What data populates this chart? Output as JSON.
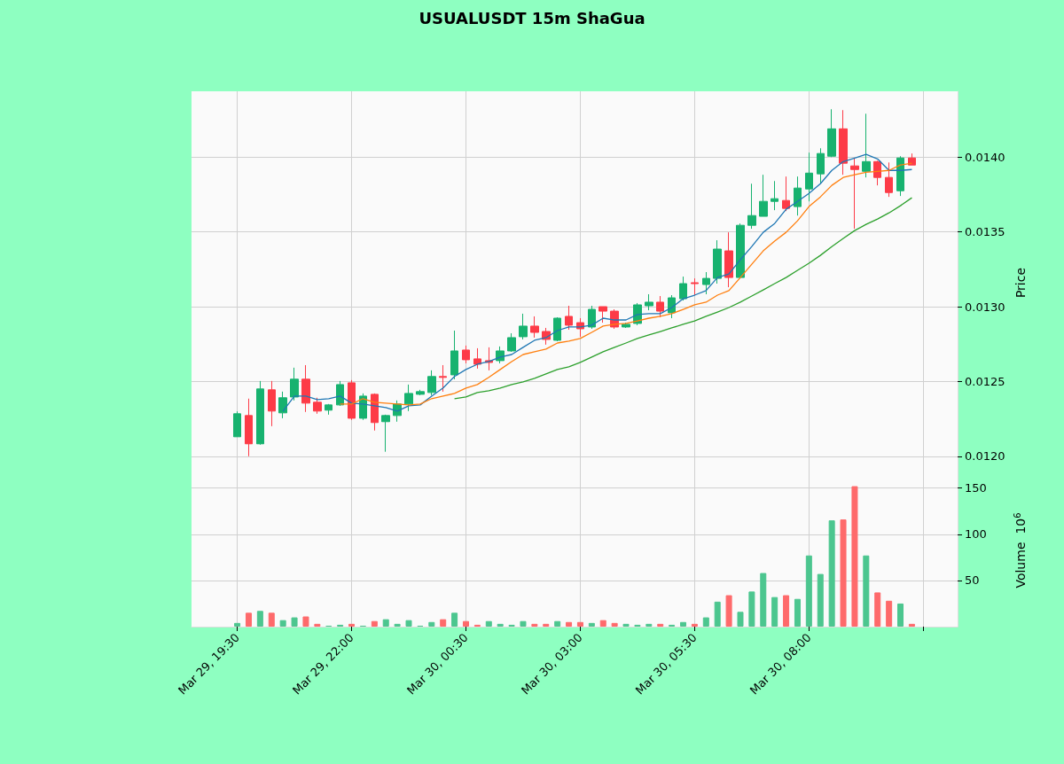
{
  "chart_data": [
    {
      "type": "candlestick",
      "title": "USUALUSDT 15m ShaGua",
      "ylabel": "Price",
      "grid": true,
      "tick_labels": "y",
      "xlim": [
        "--03-29T18:30",
        "--03-30T11:15"
      ],
      "xticks": [
        {
          "value": "--03-29T19:30",
          "label": null
        },
        {
          "value": "--03-29T22:00",
          "label": null
        },
        {
          "value": "--03-30T00:30",
          "label": null
        },
        {
          "value": "--03-30T03:00",
          "label": null
        },
        {
          "value": "--03-30T05:30",
          "label": null
        },
        {
          "value": "--03-30T08:00",
          "label": null
        },
        {
          "value": "--03-30T10:30",
          "label": null
        }
      ],
      "ylim": [
        0.01188,
        0.01444
      ],
      "yticks": [
        {
          "value": 0.012,
          "label": "0.0120"
        },
        0.0125,
        {
          "value": 0.013,
          "label": "0.0130"
        },
        0.0135,
        {
          "value": 0.014,
          "label": "0.0140"
        }
      ],
      "x": [
        "--03-29T19:30",
        "--03-29T19:45",
        "--03-29T20:00",
        "--03-29T20:15",
        "--03-29T20:30",
        "--03-29T20:45",
        "--03-29T21:00",
        "--03-29T21:15",
        "--03-29T21:30",
        "--03-29T21:45",
        "--03-29T22:00",
        "--03-29T22:15",
        "--03-29T22:30",
        "--03-29T22:45",
        "--03-29T23:00",
        "--03-29T23:15",
        "--03-29T23:30",
        "--03-29T23:45",
        "--03-30T00:00",
        "--03-30T00:15",
        "--03-30T00:30",
        "--03-30T00:45",
        "--03-30T01:00",
        "--03-30T01:15",
        "--03-30T01:30",
        "--03-30T01:45",
        "--03-30T02:00",
        "--03-30T02:15",
        "--03-30T02:30",
        "--03-30T02:45",
        "--03-30T03:00",
        "--03-30T03:15",
        "--03-30T03:30",
        "--03-30T03:45",
        "--03-30T04:00",
        "--03-30T04:15",
        "--03-30T04:30",
        "--03-30T04:45",
        "--03-30T05:00",
        "--03-30T05:15",
        "--03-30T05:30",
        "--03-30T05:45",
        "--03-30T06:00",
        "--03-30T06:15",
        "--03-30T06:30",
        "--03-30T06:45",
        "--03-30T07:00",
        "--03-30T07:15",
        "--03-30T07:30",
        "--03-30T07:45",
        "--03-30T08:00",
        "--03-30T08:15",
        "--03-30T08:30",
        "--03-30T08:45",
        "--03-30T09:00",
        "--03-30T09:15",
        "--03-30T09:30",
        "--03-30T09:45",
        "--03-30T10:00",
        "--03-30T10:15"
      ],
      "ohlc": [
        [
          0.01213,
          0.0123,
          0.01213,
          0.012284
        ],
        [
          0.012272,
          0.012385,
          0.012,
          0.012083
        ],
        [
          0.012083,
          0.012503,
          0.012077,
          0.01245
        ],
        [
          0.012444,
          0.012503,
          0.012201,
          0.012302
        ],
        [
          0.01229,
          0.012432,
          0.012254,
          0.012391
        ],
        [
          0.012396,
          0.012592,
          0.012373,
          0.012515
        ],
        [
          0.012515,
          0.012609,
          0.012296,
          0.012355
        ],
        [
          0.012361,
          0.012391,
          0.012284,
          0.012302
        ],
        [
          0.012308,
          0.012349,
          0.012278,
          0.012343
        ],
        [
          0.012343,
          0.012503,
          0.012337,
          0.012479
        ],
        [
          0.012491,
          0.012509,
          0.012243,
          0.012254
        ],
        [
          0.012254,
          0.01242,
          0.012243,
          0.012402
        ],
        [
          0.012414,
          0.01242,
          0.012172,
          0.012225
        ],
        [
          0.012231,
          0.012278,
          0.01203,
          0.012272
        ],
        [
          0.012272,
          0.012373,
          0.012231,
          0.012349
        ],
        [
          0.012349,
          0.012479,
          0.012302,
          0.01242
        ],
        [
          0.012414,
          0.012444,
          0.012408,
          0.012432
        ],
        [
          0.012426,
          0.012574,
          0.012408,
          0.012533
        ],
        [
          0.012533,
          0.012609,
          0.012432,
          0.012527
        ],
        [
          0.012544,
          0.01284,
          0.012515,
          0.012704
        ],
        [
          0.01271,
          0.01274,
          0.012621,
          0.012645
        ],
        [
          0.012651,
          0.012722,
          0.012586,
          0.012615
        ],
        [
          0.012639,
          0.012728,
          0.012574,
          0.012627
        ],
        [
          0.012639,
          0.012734,
          0.012621,
          0.012704
        ],
        [
          0.012704,
          0.012822,
          0.012698,
          0.012793
        ],
        [
          0.012799,
          0.012953,
          0.012781,
          0.01287
        ],
        [
          0.01287,
          0.012935,
          0.012793,
          0.012828
        ],
        [
          0.012834,
          0.012858,
          0.012746,
          0.012781
        ],
        [
          0.012775,
          0.012929,
          0.012769,
          0.012923
        ],
        [
          0.012935,
          0.013006,
          0.012846,
          0.012876
        ],
        [
          0.012893,
          0.012923,
          0.012799,
          0.012852
        ],
        [
          0.012864,
          0.013006,
          0.012852,
          0.012982
        ],
        [
          0.013,
          0.013,
          0.012893,
          0.01297
        ],
        [
          0.01297,
          0.012982,
          0.012852,
          0.012864
        ],
        [
          0.012864,
          0.012893,
          0.012858,
          0.012882
        ],
        [
          0.012888,
          0.013024,
          0.012876,
          0.013012
        ],
        [
          0.013006,
          0.013083,
          0.012976,
          0.01303
        ],
        [
          0.01303,
          0.013071,
          0.012929,
          0.01297
        ],
        [
          0.012959,
          0.013077,
          0.012923,
          0.013059
        ],
        [
          0.013053,
          0.013201,
          0.013041,
          0.013154
        ],
        [
          0.01316,
          0.013189,
          0.013077,
          0.013154
        ],
        [
          0.013148,
          0.013231,
          0.013083,
          0.013189
        ],
        [
          0.013189,
          0.013444,
          0.013154,
          0.013385
        ],
        [
          0.013373,
          0.013497,
          0.01313,
          0.013195
        ],
        [
          0.013195,
          0.013556,
          0.013189,
          0.013544
        ],
        [
          0.013544,
          0.013822,
          0.013521,
          0.013609
        ],
        [
          0.013604,
          0.013882,
          0.013604,
          0.013704
        ],
        [
          0.013704,
          0.01384,
          0.013645,
          0.013722
        ],
        [
          0.01371,
          0.01387,
          0.013639,
          0.013657
        ],
        [
          0.013669,
          0.01387,
          0.013609,
          0.013793
        ],
        [
          0.013787,
          0.01403,
          0.013704,
          0.013893
        ],
        [
          0.013888,
          0.014059,
          0.013822,
          0.014024
        ],
        [
          0.014006,
          0.01432,
          0.014,
          0.014189
        ],
        [
          0.014189,
          0.014314,
          0.013882,
          0.013959
        ],
        [
          0.013941,
          0.013994,
          0.013521,
          0.013917
        ],
        [
          0.013905,
          0.01429,
          0.013864,
          0.01397
        ],
        [
          0.01397,
          0.013976,
          0.013811,
          0.013864
        ],
        [
          0.013864,
          0.013964,
          0.013734,
          0.013763
        ],
        [
          0.013775,
          0.014006,
          0.01374,
          0.013994
        ],
        [
          0.013994,
          0.014024,
          0.013947,
          0.013947
        ]
      ],
      "colors": [
        "#17b26f",
        "#fd3b47",
        "#17b26f",
        "#fd3b47",
        "#17b26f",
        "#17b26f",
        "#fd3b47",
        "#fd3b47",
        "#17b26f",
        "#17b26f",
        "#fd3b47",
        "#17b26f",
        "#fd3b47",
        "#17b26f",
        "#17b26f",
        "#17b26f",
        "#17b26f",
        "#17b26f",
        "#fd3b47",
        "#17b26f",
        "#fd3b47",
        "#fd3b47",
        "#fd3b47",
        "#17b26f",
        "#17b26f",
        "#17b26f",
        "#fd3b47",
        "#fd3b47",
        "#17b26f",
        "#fd3b47",
        "#fd3b47",
        "#17b26f",
        "#fd3b47",
        "#fd3b47",
        "#17b26f",
        "#17b26f",
        "#17b26f",
        "#fd3b47",
        "#17b26f",
        "#17b26f",
        "#fd3b47",
        "#17b26f",
        "#17b26f",
        "#fd3b47",
        "#17b26f",
        "#17b26f",
        "#17b26f",
        "#17b26f",
        "#fd3b47",
        "#17b26f",
        "#17b26f",
        "#17b26f",
        "#17b26f",
        "#fd3b47",
        "#fd3b47",
        "#17b26f",
        "#fd3b47",
        "#fd3b47",
        "#17b26f",
        "#fd3b47"
      ],
      "series": [
        {
          "type": "line",
          "color": "#1f77b4",
          "values": [
            null,
            null,
            null,
            null,
            0.012302,
            0.012402,
            0.012402,
            0.012379,
            0.012385,
            0.012402,
            0.012355,
            0.012349,
            0.012337,
            0.012325,
            0.012302,
            0.012337,
            0.012343,
            0.012402,
            0.012456,
            0.012533,
            0.01258,
            0.012615,
            0.012633,
            0.012663,
            0.01268,
            0.012728,
            0.012775,
            0.012793,
            0.01284,
            0.012864,
            0.012864,
            0.012876,
            0.012923,
            0.012911,
            0.012911,
            0.012947,
            0.012953,
            0.012953,
            0.012994,
            0.013053,
            0.013077,
            0.013107,
            0.013195,
            0.013219,
            0.013314,
            0.013402,
            0.013497,
            0.013556,
            0.013651,
            0.013704,
            0.013757,
            0.013822,
            0.013911,
            0.01397,
            0.013994,
            0.014018,
            0.013988,
            0.013911,
            0.013911,
            0.013917
          ]
        },
        {
          "type": "line",
          "color": "#ff7f0e",
          "values": [
            null,
            null,
            null,
            null,
            null,
            null,
            null,
            null,
            null,
            0.012349,
            0.012349,
            0.012385,
            0.012361,
            0.012355,
            0.012349,
            0.012343,
            0.012349,
            0.012385,
            0.012402,
            0.01242,
            0.012456,
            0.012479,
            0.012527,
            0.01258,
            0.012633,
            0.01268,
            0.012698,
            0.012716,
            0.012757,
            0.012769,
            0.012787,
            0.012828,
            0.01287,
            0.012882,
            0.012888,
            0.012905,
            0.012923,
            0.012935,
            0.012953,
            0.012982,
            0.013012,
            0.01303,
            0.013077,
            0.013107,
            0.013195,
            0.013284,
            0.013373,
            0.013438,
            0.013497,
            0.013574,
            0.013669,
            0.013734,
            0.013811,
            0.013864,
            0.013882,
            0.013899,
            0.013905,
            0.013911,
            0.013947,
            0.013959
          ]
        },
        {
          "type": "line",
          "color": "#2ca02c",
          "values": [
            null,
            null,
            null,
            null,
            null,
            null,
            null,
            null,
            null,
            null,
            null,
            null,
            null,
            null,
            null,
            null,
            null,
            null,
            null,
            0.012385,
            0.012396,
            0.012426,
            0.012438,
            0.012456,
            0.012479,
            0.012497,
            0.012521,
            0.01255,
            0.01258,
            0.012598,
            0.012627,
            0.012663,
            0.012698,
            0.012728,
            0.012757,
            0.012787,
            0.012811,
            0.012834,
            0.012858,
            0.012882,
            0.012905,
            0.012935,
            0.012964,
            0.012994,
            0.01303,
            0.013071,
            0.013112,
            0.013154,
            0.013195,
            0.013243,
            0.01329,
            0.013343,
            0.013402,
            0.013456,
            0.013509,
            0.01355,
            0.013586,
            0.013627,
            0.013675,
            0.013728
          ]
        }
      ]
    },
    {
      "type": "bar",
      "ylabel": "Volume  10$^{6}$",
      "grid": true,
      "xlim": [
        "--03-29T18:30",
        "--03-30T11:15"
      ],
      "xticks": [
        {
          "value": "--03-29T19:30",
          "label": "Mar 29, 19:30"
        },
        {
          "value": "--03-29T22:00",
          "label": "Mar 29, 22:00"
        },
        {
          "value": "--03-30T00:30",
          "label": "Mar 30, 00:30"
        },
        {
          "value": "--03-30T03:00",
          "label": "Mar 30, 03:00"
        },
        {
          "value": "--03-30T05:30",
          "label": "Mar 30, 05:30"
        },
        {
          "value": "--03-30T08:00",
          "label": "Mar 30, 08:00"
        },
        {
          "value": "--03-30T10:30",
          "label": null
        }
      ],
      "ylim": [
        0,
        165
      ],
      "yticks": [
        50,
        100,
        150
      ],
      "x": [
        "--03-29T19:30",
        "--03-29T19:45",
        "--03-29T20:00",
        "--03-29T20:15",
        "--03-29T20:30",
        "--03-29T20:45",
        "--03-29T21:00",
        "--03-29T21:15",
        "--03-29T21:30",
        "--03-29T21:45",
        "--03-29T22:00",
        "--03-29T22:15",
        "--03-29T22:30",
        "--03-29T22:45",
        "--03-29T23:00",
        "--03-29T23:15",
        "--03-29T23:30",
        "--03-29T23:45",
        "--03-30T00:00",
        "--03-30T00:15",
        "--03-30T00:30",
        "--03-30T00:45",
        "--03-30T01:00",
        "--03-30T01:15",
        "--03-30T01:30",
        "--03-30T01:45",
        "--03-30T02:00",
        "--03-30T02:15",
        "--03-30T02:30",
        "--03-30T02:45",
        "--03-30T03:00",
        "--03-30T03:15",
        "--03-30T03:30",
        "--03-30T03:45",
        "--03-30T04:00",
        "--03-30T04:15",
        "--03-30T04:30",
        "--03-30T04:45",
        "--03-30T05:00",
        "--03-30T05:15",
        "--03-30T05:30",
        "--03-30T05:45",
        "--03-30T06:00",
        "--03-30T06:15",
        "--03-30T06:30",
        "--03-30T06:45",
        "--03-30T07:00",
        "--03-30T07:15",
        "--03-30T07:30",
        "--03-30T07:45",
        "--03-30T08:00",
        "--03-30T08:15",
        "--03-30T08:30",
        "--03-30T08:45",
        "--03-30T09:00",
        "--03-30T09:15",
        "--03-30T09:30",
        "--03-30T09:45",
        "--03-30T10:00",
        "--03-30T10:15"
      ],
      "values": [
        4,
        15,
        17,
        15,
        7,
        10,
        11,
        3,
        1,
        2,
        3,
        1,
        6,
        8,
        3,
        7,
        1,
        5,
        8,
        15,
        6,
        2,
        6,
        3,
        2,
        6,
        3,
        3,
        6,
        5,
        5,
        4,
        7,
        4,
        3,
        2,
        3,
        3,
        2,
        5,
        3,
        10,
        27,
        34,
        16,
        38,
        58,
        32,
        34,
        30,
        77,
        57,
        115,
        116,
        152,
        77,
        37,
        28,
        25,
        3
      ],
      "colors": [
        "#4cc68f",
        "#fe6a6b",
        "#4cc68f",
        "#fe6a6b",
        "#4cc68f",
        "#4cc68f",
        "#fe6a6b",
        "#fe6a6b",
        "#4cc68f",
        "#4cc68f",
        "#fe6a6b",
        "#4cc68f",
        "#fe6a6b",
        "#4cc68f",
        "#4cc68f",
        "#4cc68f",
        "#4cc68f",
        "#4cc68f",
        "#fe6a6b",
        "#4cc68f",
        "#fe6a6b",
        "#fe6a6b",
        "#4cc68f",
        "#4cc68f",
        "#4cc68f",
        "#4cc68f",
        "#fe6a6b",
        "#fe6a6b",
        "#4cc68f",
        "#fe6a6b",
        "#fe6a6b",
        "#4cc68f",
        "#fe6a6b",
        "#fe6a6b",
        "#4cc68f",
        "#4cc68f",
        "#4cc68f",
        "#fe6a6b",
        "#4cc68f",
        "#4cc68f",
        "#fe6a6b",
        "#4cc68f",
        "#4cc68f",
        "#fe6a6b",
        "#4cc68f",
        "#4cc68f",
        "#4cc68f",
        "#4cc68f",
        "#fe6a6b",
        "#4cc68f",
        "#4cc68f",
        "#4cc68f",
        "#4cc68f",
        "#fe6a6b",
        "#fe6a6b",
        "#4cc68f",
        "#fe6a6b",
        "#fe6a6b",
        "#4cc68f",
        "#fe6a6b"
      ]
    }
  ]
}
